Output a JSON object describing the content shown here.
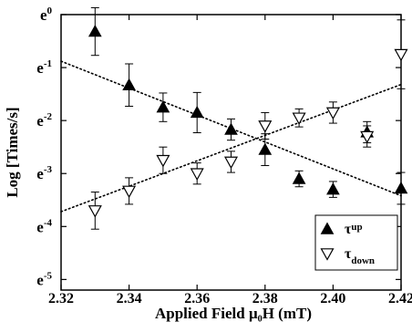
{
  "chart_data": {
    "type": "scatter",
    "xlabel": "Applied Field μ₀H (mT)",
    "ylabel": "Log [Times/s]",
    "xlim": [
      2.32,
      2.42
    ],
    "ylim": [
      -5.2,
      0.0
    ],
    "x_ticks": [
      {
        "value": 2.32,
        "label": "2.32"
      },
      {
        "value": 2.34,
        "label": "2.34"
      },
      {
        "value": 2.36,
        "label": "2.36"
      },
      {
        "value": 2.38,
        "label": "2.38"
      },
      {
        "value": 2.4,
        "label": "2.40"
      },
      {
        "value": 2.42,
        "label": "2.42"
      }
    ],
    "y_ticks": [
      {
        "value": 0,
        "label": "e",
        "sup": "0"
      },
      {
        "value": -1,
        "label": "e",
        "sup": "-1"
      },
      {
        "value": -2,
        "label": "e",
        "sup": "-2"
      },
      {
        "value": -3,
        "label": "e",
        "sup": "-3"
      },
      {
        "value": -4,
        "label": "e",
        "sup": "-4"
      },
      {
        "value": -5,
        "label": "e",
        "sup": "-5"
      }
    ],
    "grid": false,
    "legend_position": "bottom-right",
    "series": [
      {
        "name": "τ_up",
        "legend_base": "τ",
        "legend_sub": "up",
        "marker": "filled-triangle-up",
        "color": "#000000",
        "points": [
          {
            "x": 2.33,
            "y": -0.32,
            "err": 0.45
          },
          {
            "x": 2.34,
            "y": -1.33,
            "err": 0.4
          },
          {
            "x": 2.35,
            "y": -1.75,
            "err": 0.27
          },
          {
            "x": 2.36,
            "y": -1.85,
            "err": 0.38
          },
          {
            "x": 2.37,
            "y": -2.17,
            "err": 0.2
          },
          {
            "x": 2.38,
            "y": -2.55,
            "err": 0.3
          },
          {
            "x": 2.39,
            "y": -3.1,
            "err": 0.15
          },
          {
            "x": 2.4,
            "y": -3.3,
            "err": 0.15
          },
          {
            "x": 2.41,
            "y": -2.22,
            "err": 0.2
          },
          {
            "x": 2.42,
            "y": -3.28,
            "err": 0.3
          }
        ]
      },
      {
        "name": "τ_down",
        "legend_base": "τ",
        "legend_sub": "down",
        "marker": "open-triangle-down",
        "color": "#000000",
        "points": [
          {
            "x": 2.33,
            "y": -3.7,
            "err": 0.35
          },
          {
            "x": 2.34,
            "y": -3.33,
            "err": 0.25
          },
          {
            "x": 2.35,
            "y": -2.75,
            "err": 0.25
          },
          {
            "x": 2.36,
            "y": -3.0,
            "err": 0.2
          },
          {
            "x": 2.37,
            "y": -2.78,
            "err": 0.2
          },
          {
            "x": 2.38,
            "y": -2.1,
            "err": 0.25
          },
          {
            "x": 2.39,
            "y": -1.95,
            "err": 0.17
          },
          {
            "x": 2.4,
            "y": -1.85,
            "err": 0.2
          },
          {
            "x": 2.41,
            "y": -2.3,
            "err": 0.2
          },
          {
            "x": 2.42,
            "y": -0.75,
            "err": 0.65
          }
        ]
      }
    ],
    "fit_lines": [
      {
        "series": "τ_up",
        "style": "dotted",
        "from": {
          "x": 2.32,
          "y": -0.88
        },
        "to": {
          "x": 2.42,
          "y": -3.42
        }
      },
      {
        "series": "τ_down",
        "style": "dotted",
        "from": {
          "x": 2.32,
          "y": -3.72
        },
        "to": {
          "x": 2.42,
          "y": -1.32
        }
      }
    ]
  }
}
